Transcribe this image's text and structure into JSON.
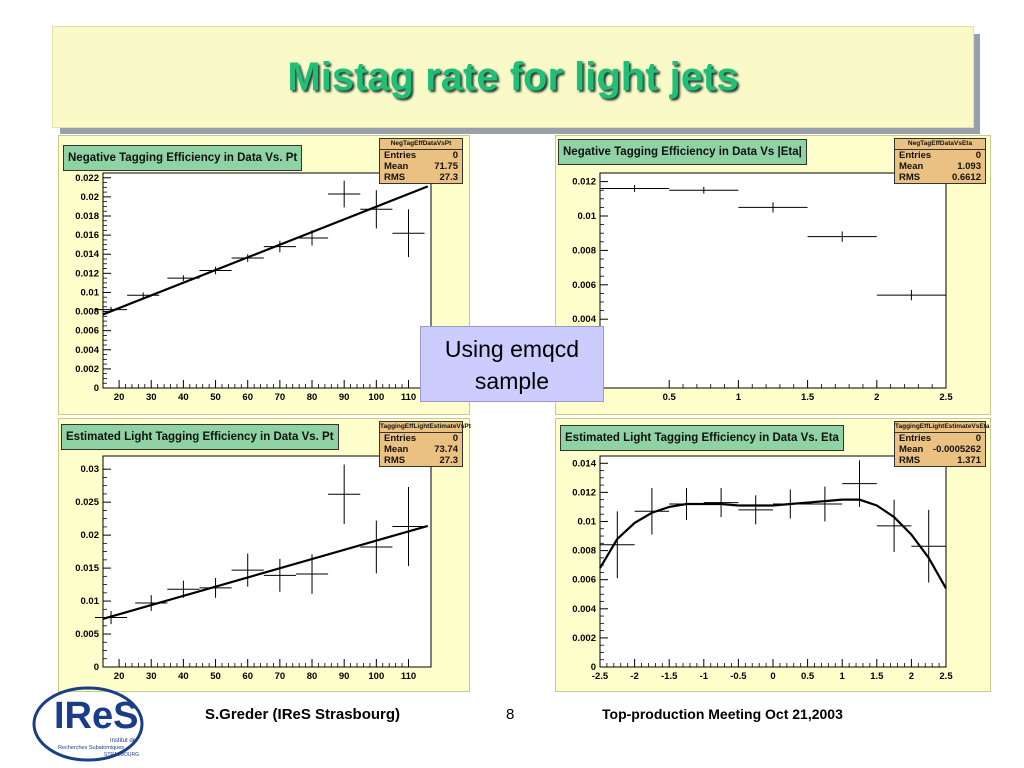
{
  "slide_title": "Mistag rate for light jets",
  "note_lines": [
    "Using emqcd",
    "sample"
  ],
  "footer": {
    "author": "S.Greder  (IReS Strasbourg)",
    "page": "8",
    "meeting": "Top-production Meeting   Oct  21,2003"
  },
  "logo": {
    "main": "IReS",
    "line1": "Institut de",
    "line2": "Recherches Subatomiques",
    "line3": "STRASBOURG"
  },
  "colors": {
    "title_bg": "#fafac8",
    "title_text": "#1fbf78",
    "panel_bg": "#ffffcc",
    "plot_title_bg": "#8fd3a5",
    "stats_bg": "#ebc182",
    "note_bg": "#ccccff",
    "logo_blue": "#1a3d8a"
  },
  "chart_data": [
    {
      "type": "scatter",
      "title": "Negative Tagging Efficiency in Data Vs. Pt",
      "stats": {
        "name": "NegTagEffDataVsPt",
        "entries": "0",
        "mean": "71.75",
        "rms": "27.3"
      },
      "xlim": [
        15,
        117
      ],
      "ylim": [
        0,
        0.0225
      ],
      "x_ticks": [
        "20",
        "30",
        "40",
        "50",
        "60",
        "70",
        "80",
        "90",
        "100",
        "110"
      ],
      "y_ticks": [
        "0",
        "0.002",
        "0.004",
        "0.006",
        "0.008",
        "0.01",
        "0.012",
        "0.014",
        "0.016",
        "0.018",
        "0.02",
        "0.022"
      ],
      "fit": {
        "x": [
          15,
          116
        ],
        "y": [
          0.0077,
          0.0211
        ]
      },
      "points": [
        {
          "x": 17.5,
          "y": 0.0082,
          "xerr": 5,
          "yerr": 0.0003
        },
        {
          "x": 27.5,
          "y": 0.0097,
          "xerr": 5,
          "yerr": 0.0003
        },
        {
          "x": 40,
          "y": 0.0115,
          "xerr": 5,
          "yerr": 0.0003
        },
        {
          "x": 50,
          "y": 0.0123,
          "xerr": 5,
          "yerr": 0.0004
        },
        {
          "x": 60,
          "y": 0.0136,
          "xerr": 5,
          "yerr": 0.0004
        },
        {
          "x": 70,
          "y": 0.0148,
          "xerr": 5,
          "yerr": 0.0006
        },
        {
          "x": 80,
          "y": 0.0157,
          "xerr": 5,
          "yerr": 0.0008
        },
        {
          "x": 90,
          "y": 0.0203,
          "xerr": 5,
          "yerr": 0.0014
        },
        {
          "x": 100,
          "y": 0.0187,
          "xerr": 5,
          "yerr": 0.002
        },
        {
          "x": 110,
          "y": 0.0162,
          "xerr": 5,
          "yerr": 0.0025
        }
      ]
    },
    {
      "type": "scatter",
      "title": "Negative Tagging Efficiency in Data Vs |Eta|",
      "stats": {
        "name": "NegTagEffDataVsEta",
        "entries": "0",
        "mean": "1.093",
        "rms": "0.6612"
      },
      "xlim": [
        0,
        2.5
      ],
      "ylim": [
        0,
        0.0125
      ],
      "x_ticks": [
        "0.5",
        "1",
        "1.5",
        "2",
        "2.5"
      ],
      "y_ticks": [
        "0.004",
        "0.006",
        "0.008",
        "0.01",
        "0.012"
      ],
      "points": [
        {
          "x": 0.25,
          "y": 0.0116,
          "xerr": 0.25,
          "yerr": 0.0002
        },
        {
          "x": 0.75,
          "y": 0.0115,
          "xerr": 0.25,
          "yerr": 0.0002
        },
        {
          "x": 1.25,
          "y": 0.0105,
          "xerr": 0.25,
          "yerr": 0.0003
        },
        {
          "x": 1.75,
          "y": 0.0088,
          "xerr": 0.25,
          "yerr": 0.0003
        },
        {
          "x": 2.25,
          "y": 0.0054,
          "xerr": 0.25,
          "yerr": 0.0003
        }
      ]
    },
    {
      "type": "scatter",
      "title": "Estimated Light Tagging Efficiency in Data Vs. Pt",
      "stats": {
        "name": "TaggingEffLightEstimateVsPt",
        "entries": "0",
        "mean": "73.74",
        "rms": "27.3"
      },
      "xlim": [
        15,
        117
      ],
      "ylim": [
        0,
        0.032
      ],
      "x_ticks": [
        "20",
        "30",
        "40",
        "50",
        "60",
        "70",
        "80",
        "90",
        "100",
        "110"
      ],
      "y_ticks": [
        "0",
        "0.005",
        "0.01",
        "0.015",
        "0.02",
        "0.025",
        "0.03"
      ],
      "fit": {
        "x": [
          15,
          116
        ],
        "y": [
          0.0073,
          0.0214
        ]
      },
      "points": [
        {
          "x": 17.5,
          "y": 0.0075,
          "xerr": 5,
          "yerr": 0.001
        },
        {
          "x": 30,
          "y": 0.0097,
          "xerr": 5,
          "yerr": 0.0012
        },
        {
          "x": 40,
          "y": 0.0118,
          "xerr": 5,
          "yerr": 0.0013
        },
        {
          "x": 50,
          "y": 0.012,
          "xerr": 5,
          "yerr": 0.0015
        },
        {
          "x": 60,
          "y": 0.0147,
          "xerr": 5,
          "yerr": 0.0025
        },
        {
          "x": 70,
          "y": 0.0139,
          "xerr": 5,
          "yerr": 0.0025
        },
        {
          "x": 80,
          "y": 0.0141,
          "xerr": 5,
          "yerr": 0.003
        },
        {
          "x": 90,
          "y": 0.0262,
          "xerr": 5,
          "yerr": 0.0045
        },
        {
          "x": 100,
          "y": 0.0182,
          "xerr": 5,
          "yerr": 0.004
        },
        {
          "x": 110,
          "y": 0.0213,
          "xerr": 5,
          "yerr": 0.006
        }
      ]
    },
    {
      "type": "scatter",
      "title": "Estimated Light Tagging Efficiency in Data Vs. Eta",
      "stats": {
        "name": "TaggingEffLightEstimateVsEta",
        "entries": "0",
        "mean": "-0.0005262",
        "rms": "1.371"
      },
      "xlim": [
        -2.5,
        2.5
      ],
      "ylim": [
        0,
        0.0145
      ],
      "x_ticks": [
        "-2.5",
        "-2",
        "-1.5",
        "-1",
        "-0.5",
        "0",
        "0.5",
        "1",
        "1.5",
        "2",
        "2.5"
      ],
      "y_ticks": [
        "0",
        "0.002",
        "0.004",
        "0.006",
        "0.008",
        "0.01",
        "0.012",
        "0.014"
      ],
      "fit_curve": {
        "x": [
          -2.5,
          -2.25,
          -2,
          -1.75,
          -1.5,
          -1.25,
          -1,
          -0.75,
          -0.5,
          -0.25,
          0,
          0.25,
          0.5,
          0.75,
          1,
          1.25,
          1.5,
          1.75,
          2,
          2.25,
          2.5
        ],
        "y": [
          0.0068,
          0.0088,
          0.0099,
          0.0106,
          0.011,
          0.0112,
          0.0112,
          0.0112,
          0.0111,
          0.0111,
          0.0111,
          0.0112,
          0.0113,
          0.0114,
          0.0115,
          0.0115,
          0.0111,
          0.0103,
          0.0091,
          0.0075,
          0.0054
        ]
      },
      "points": [
        {
          "x": -2.25,
          "y": 0.0084,
          "xerr": 0.25,
          "yerr": 0.0023
        },
        {
          "x": -1.75,
          "y": 0.0107,
          "xerr": 0.25,
          "yerr": 0.0016
        },
        {
          "x": -1.25,
          "y": 0.0112,
          "xerr": 0.25,
          "yerr": 0.0011
        },
        {
          "x": -0.75,
          "y": 0.0113,
          "xerr": 0.25,
          "yerr": 0.001
        },
        {
          "x": -0.25,
          "y": 0.0108,
          "xerr": 0.25,
          "yerr": 0.001
        },
        {
          "x": 0.25,
          "y": 0.0112,
          "xerr": 0.25,
          "yerr": 0.001
        },
        {
          "x": 0.75,
          "y": 0.0112,
          "xerr": 0.25,
          "yerr": 0.0012
        },
        {
          "x": 1.25,
          "y": 0.0126,
          "xerr": 0.25,
          "yerr": 0.0016
        },
        {
          "x": 1.75,
          "y": 0.0097,
          "xerr": 0.25,
          "yerr": 0.0018
        },
        {
          "x": 2.25,
          "y": 0.0083,
          "xerr": 0.25,
          "yerr": 0.0025
        }
      ]
    }
  ]
}
